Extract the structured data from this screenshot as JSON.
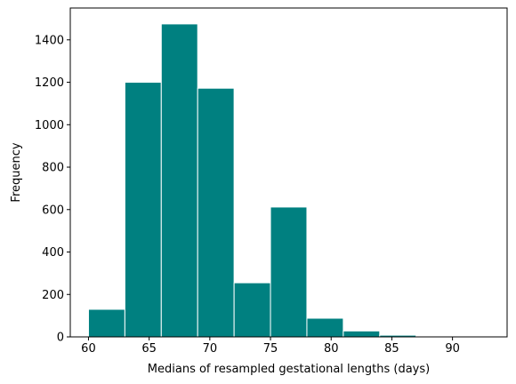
{
  "chart_data": {
    "type": "histogram",
    "xlabel": "Medians of resampled gestational lengths (days)",
    "ylabel": "Frequency",
    "xlim": [
      58.5,
      94.5
    ],
    "ylim": [
      0,
      1550
    ],
    "x_ticks": [
      60,
      65,
      70,
      75,
      80,
      85,
      90
    ],
    "y_ticks": [
      0,
      200,
      400,
      600,
      800,
      1000,
      1200,
      1400
    ],
    "bins": [
      {
        "x0": 60,
        "x1": 63,
        "count": 130
      },
      {
        "x0": 63,
        "x1": 66,
        "count": 1200
      },
      {
        "x0": 66,
        "x1": 69,
        "count": 1475
      },
      {
        "x0": 69,
        "x1": 72,
        "count": 1172
      },
      {
        "x0": 72,
        "x1": 75,
        "count": 255
      },
      {
        "x0": 75,
        "x1": 78,
        "count": 612
      },
      {
        "x0": 78,
        "x1": 81,
        "count": 88
      },
      {
        "x0": 81,
        "x1": 84,
        "count": 28
      },
      {
        "x0": 84,
        "x1": 87,
        "count": 8
      },
      {
        "x0": 87,
        "x1": 90,
        "count": 2
      },
      {
        "x0": 90,
        "x1": 93,
        "count": 1
      }
    ],
    "bar_color": "#008080",
    "edge_color": "#ffffff",
    "grid": false,
    "legend": "none"
  }
}
